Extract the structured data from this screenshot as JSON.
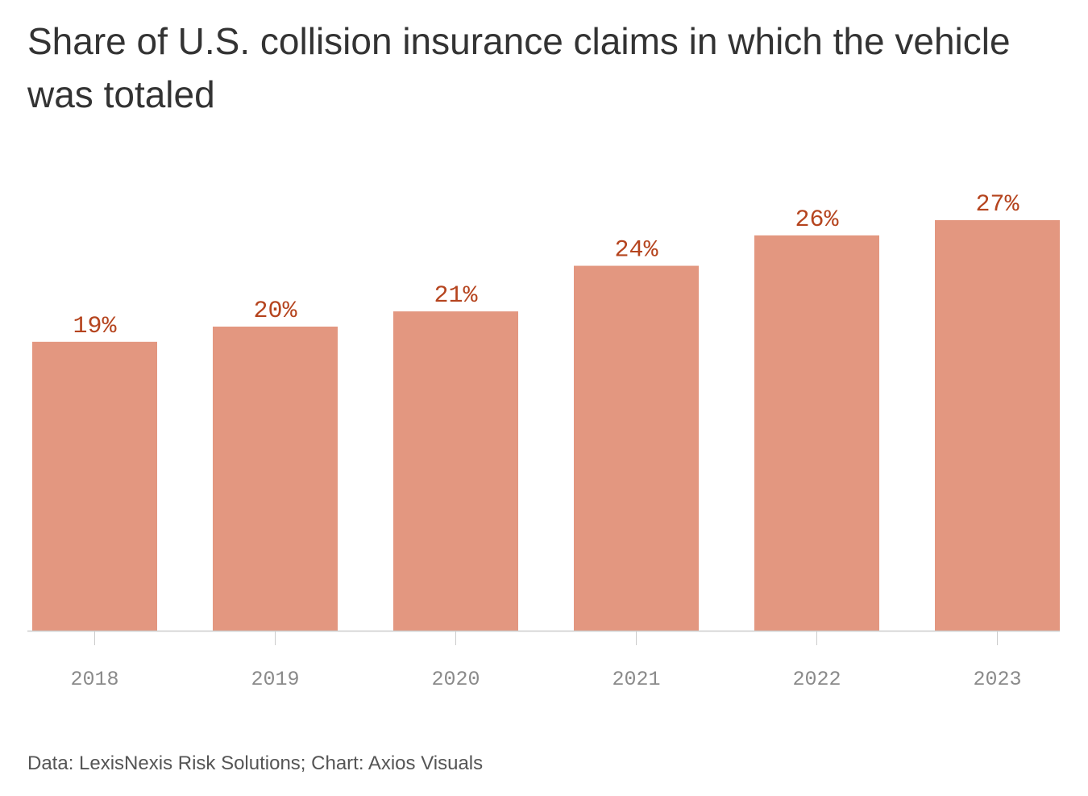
{
  "chart_data": {
    "type": "bar",
    "title": "Share of U.S. collision insurance claims in which the vehicle was totaled",
    "categories": [
      "2018",
      "2019",
      "2020",
      "2021",
      "2022",
      "2023"
    ],
    "values": [
      19,
      20,
      21,
      24,
      26,
      27
    ],
    "value_labels": [
      "19%",
      "20%",
      "21%",
      "24%",
      "26%",
      "27%"
    ],
    "unit": "%",
    "ylim": [
      0,
      27
    ],
    "grid": false,
    "legend": "none",
    "xlabel": "",
    "ylabel": ""
  },
  "footer": {
    "source": "Data: LexisNexis Risk Solutions; Chart: Axios Visuals"
  },
  "colors": {
    "bar": "#e39780",
    "value_label": "#b5441e",
    "tick_label": "#8a8a8a",
    "axis": "#cccccc",
    "title": "#333333"
  }
}
